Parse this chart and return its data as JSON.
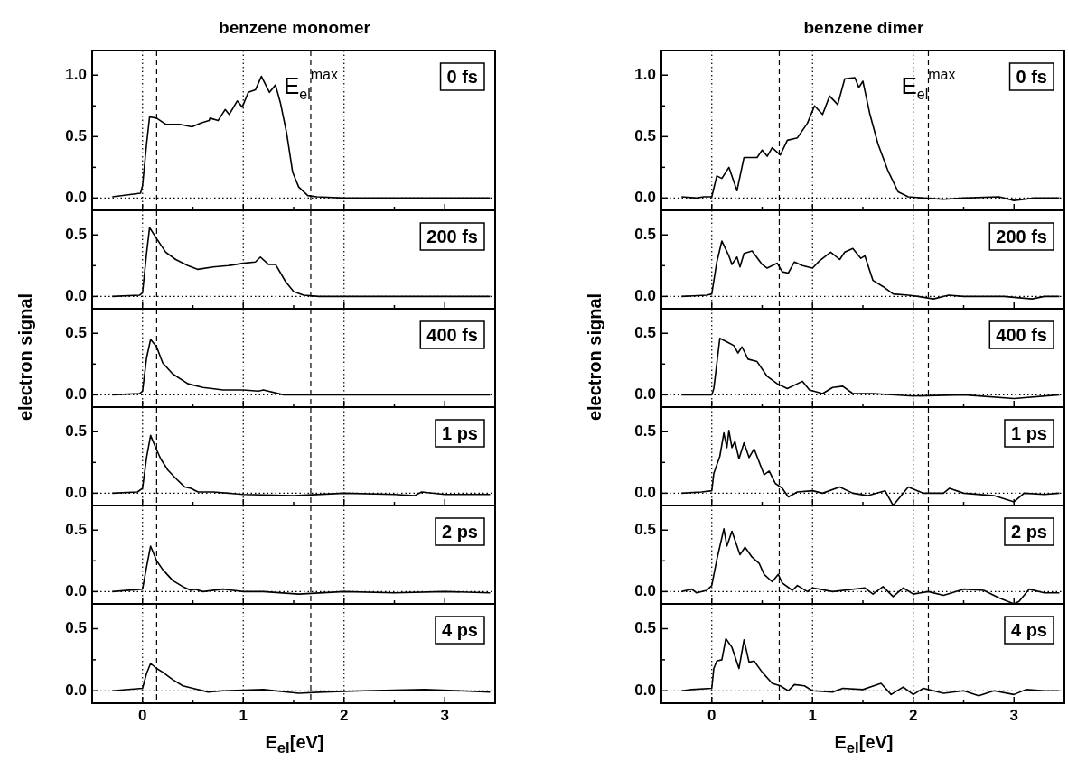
{
  "chart_data": [
    {
      "type": "line",
      "title": "benzene monomer",
      "color": "#000000",
      "tick_labels": "y",
      "x": [
        -0.3,
        -0.02,
        0.0,
        0.04,
        0.07,
        0.14,
        0.23,
        0.37,
        0.49,
        0.58,
        0.66,
        0.67,
        0.75,
        0.82,
        0.86,
        0.94,
        0.99,
        1.05,
        1.12,
        1.18,
        1.26,
        1.32,
        1.37,
        1.43,
        1.49,
        1.55,
        1.64,
        1.73,
        2.0,
        2.5,
        3.0,
        3.45
      ],
      "values": [
        0.01,
        0.04,
        0.1,
        0.44,
        0.66,
        0.65,
        0.6,
        0.6,
        0.58,
        0.61,
        0.63,
        0.65,
        0.63,
        0.72,
        0.68,
        0.79,
        0.74,
        0.86,
        0.88,
        0.99,
        0.86,
        0.92,
        0.77,
        0.53,
        0.21,
        0.09,
        0.02,
        0.01,
        0.0,
        0.0,
        0.0,
        0.0
      ],
      "xlim": [
        -0.5,
        3.5
      ],
      "xticks": [
        0,
        {
          "value": 0.5,
          "label": null
        },
        1,
        {
          "value": 1.5,
          "label": null
        },
        2,
        {
          "value": 2.5,
          "label": null
        },
        3
      ],
      "ylim": [
        -0.1,
        1.2
      ],
      "yticks": [
        {
          "value": 0,
          "label": "0.0"
        },
        {
          "value": 0.25,
          "label": null
        },
        {
          "value": 0.5,
          "label": "0.5"
        },
        {
          "value": 0.75,
          "label": null
        },
        {
          "value": 1,
          "label": "1.0"
        }
      ],
      "ref_lines": [
        {
          "axis": "x",
          "value": 0,
          "line_style": "dotted"
        },
        {
          "axis": "x",
          "value": 1,
          "line_style": "dotted"
        },
        {
          "axis": "x",
          "value": 2,
          "line_style": "dotted"
        },
        {
          "axis": "x",
          "value": 0.14,
          "line_style": "dashed"
        },
        {
          "axis": "x",
          "value": 1.67,
          "line_style": "dashed"
        },
        {
          "axis": "y",
          "value": 0,
          "line_style": "dotted"
        }
      ],
      "annotations": [
        "0 fs",
        {
          "text": "E$_{el}$$^{max}$",
          "x": 1.67,
          "y": 0.9
        }
      ]
    },
    {
      "type": "line",
      "color": "#000000",
      "tick_labels": "y",
      "x": [
        -0.3,
        -0.03,
        0.0,
        0.04,
        0.07,
        0.14,
        0.23,
        0.33,
        0.45,
        0.55,
        0.7,
        0.85,
        1.0,
        1.12,
        1.17,
        1.25,
        1.32,
        1.42,
        1.5,
        1.6,
        1.75,
        2.5,
        3.45
      ],
      "values": [
        0.0,
        0.01,
        0.03,
        0.35,
        0.56,
        0.47,
        0.36,
        0.3,
        0.25,
        0.22,
        0.24,
        0.25,
        0.27,
        0.28,
        0.32,
        0.26,
        0.26,
        0.12,
        0.04,
        0.01,
        0.0,
        0.0,
        0.0
      ],
      "xlim": [
        -0.5,
        3.5
      ],
      "xticks": [
        0,
        {
          "value": 0.5,
          "label": null
        },
        1,
        {
          "value": 1.5,
          "label": null
        },
        2,
        {
          "value": 2.5,
          "label": null
        },
        3
      ],
      "ylim": [
        -0.1,
        0.7
      ],
      "yticks": [
        {
          "value": 0,
          "label": "0.0"
        },
        {
          "value": 0.25,
          "label": null
        },
        {
          "value": 0.5,
          "label": "0.5"
        }
      ],
      "ref_lines": [
        {
          "axis": "x",
          "value": 0,
          "line_style": "dotted"
        },
        {
          "axis": "x",
          "value": 1,
          "line_style": "dotted"
        },
        {
          "axis": "x",
          "value": 2,
          "line_style": "dotted"
        },
        {
          "axis": "x",
          "value": 0.14,
          "line_style": "dashed"
        },
        {
          "axis": "x",
          "value": 1.67,
          "line_style": "dashed"
        },
        {
          "axis": "y",
          "value": 0,
          "line_style": "dotted"
        }
      ],
      "annotations": [
        "200 fs"
      ]
    },
    {
      "type": "line",
      "color": "#000000",
      "tick_labels": "y",
      "x": [
        -0.3,
        -0.03,
        0.0,
        0.04,
        0.08,
        0.14,
        0.2,
        0.3,
        0.45,
        0.6,
        0.8,
        1.0,
        1.15,
        1.2,
        1.4,
        1.6,
        2.0,
        3.45
      ],
      "ylabel": "electron signal",
      "values": [
        0.0,
        0.01,
        0.03,
        0.3,
        0.45,
        0.39,
        0.26,
        0.17,
        0.09,
        0.06,
        0.04,
        0.04,
        0.03,
        0.04,
        0.0,
        0.0,
        0.0,
        0.0
      ],
      "xlim": [
        -0.5,
        3.5
      ],
      "xticks": [
        0,
        {
          "value": 0.5,
          "label": null
        },
        1,
        {
          "value": 1.5,
          "label": null
        },
        2,
        {
          "value": 2.5,
          "label": null
        },
        3
      ],
      "ylim": [
        -0.1,
        0.7
      ],
      "yticks": [
        {
          "value": 0,
          "label": "0.0"
        },
        {
          "value": 0.25,
          "label": null
        },
        {
          "value": 0.5,
          "label": "0.5"
        }
      ],
      "ref_lines": [
        {
          "axis": "x",
          "value": 0,
          "line_style": "dotted"
        },
        {
          "axis": "x",
          "value": 1,
          "line_style": "dotted"
        },
        {
          "axis": "x",
          "value": 2,
          "line_style": "dotted"
        },
        {
          "axis": "x",
          "value": 0.14,
          "line_style": "dashed"
        },
        {
          "axis": "x",
          "value": 1.67,
          "line_style": "dashed"
        },
        {
          "axis": "y",
          "value": 0,
          "line_style": "dotted"
        }
      ],
      "annotations": [
        "400 fs"
      ]
    },
    {
      "type": "line",
      "color": "#000000",
      "tick_labels": "y",
      "x": [
        -0.3,
        -0.05,
        0.0,
        0.04,
        0.08,
        0.12,
        0.18,
        0.25,
        0.33,
        0.42,
        0.48,
        0.55,
        0.7,
        1.0,
        1.5,
        2.0,
        2.5,
        2.7,
        2.77,
        3.0,
        3.45
      ],
      "values": [
        0.0,
        0.01,
        0.04,
        0.29,
        0.47,
        0.39,
        0.28,
        0.19,
        0.12,
        0.05,
        0.04,
        0.01,
        0.01,
        -0.01,
        -0.02,
        0.0,
        -0.01,
        -0.02,
        0.01,
        -0.01,
        -0.01
      ],
      "xlim": [
        -0.5,
        3.5
      ],
      "xticks": [
        0,
        {
          "value": 0.5,
          "label": null
        },
        1,
        {
          "value": 1.5,
          "label": null
        },
        2,
        {
          "value": 2.5,
          "label": null
        },
        3
      ],
      "ylim": [
        -0.1,
        0.7
      ],
      "yticks": [
        {
          "value": 0,
          "label": "0.0"
        },
        {
          "value": 0.25,
          "label": null
        },
        {
          "value": 0.5,
          "label": "0.5"
        }
      ],
      "ref_lines": [
        {
          "axis": "x",
          "value": 0,
          "line_style": "dotted"
        },
        {
          "axis": "x",
          "value": 1,
          "line_style": "dotted"
        },
        {
          "axis": "x",
          "value": 2,
          "line_style": "dotted"
        },
        {
          "axis": "x",
          "value": 0.14,
          "line_style": "dashed"
        },
        {
          "axis": "x",
          "value": 1.67,
          "line_style": "dashed"
        },
        {
          "axis": "y",
          "value": 0,
          "line_style": "dotted"
        }
      ],
      "annotations": [
        "1 ps"
      ]
    },
    {
      "type": "line",
      "color": "#000000",
      "tick_labels": "y",
      "x": [
        -0.3,
        0.0,
        0.04,
        0.08,
        0.14,
        0.2,
        0.3,
        0.4,
        0.48,
        0.52,
        0.6,
        0.8,
        1.0,
        1.2,
        1.55,
        2.0,
        2.5,
        3.0,
        3.45
      ],
      "values": [
        0.0,
        0.02,
        0.2,
        0.37,
        0.25,
        0.18,
        0.09,
        0.04,
        0.01,
        0.02,
        0.0,
        0.02,
        0.0,
        0.0,
        -0.02,
        0.0,
        -0.01,
        0.0,
        -0.01
      ],
      "xlim": [
        -0.5,
        3.5
      ],
      "xticks": [
        0,
        {
          "value": 0.5,
          "label": null
        },
        1,
        {
          "value": 1.5,
          "label": null
        },
        2,
        {
          "value": 2.5,
          "label": null
        },
        3
      ],
      "ylim": [
        -0.1,
        0.7
      ],
      "yticks": [
        {
          "value": 0,
          "label": "0.0"
        },
        {
          "value": 0.25,
          "label": null
        },
        {
          "value": 0.5,
          "label": "0.5"
        }
      ],
      "ref_lines": [
        {
          "axis": "x",
          "value": 0,
          "line_style": "dotted"
        },
        {
          "axis": "x",
          "value": 1,
          "line_style": "dotted"
        },
        {
          "axis": "x",
          "value": 2,
          "line_style": "dotted"
        },
        {
          "axis": "x",
          "value": 0.14,
          "line_style": "dashed"
        },
        {
          "axis": "x",
          "value": 1.67,
          "line_style": "dashed"
        },
        {
          "axis": "y",
          "value": 0,
          "line_style": "dotted"
        }
      ],
      "annotations": [
        "2 ps"
      ]
    },
    {
      "type": "line",
      "color": "#000000",
      "xlabel": "E$_{el}$[eV]",
      "x": [
        -0.3,
        0.0,
        0.04,
        0.08,
        0.14,
        0.2,
        0.3,
        0.4,
        0.5,
        0.65,
        0.8,
        1.2,
        1.55,
        1.8,
        2.2,
        2.8,
        3.45
      ],
      "values": [
        0.0,
        0.02,
        0.14,
        0.22,
        0.18,
        0.15,
        0.09,
        0.04,
        0.02,
        -0.01,
        0.0,
        0.01,
        -0.02,
        -0.01,
        0.0,
        0.01,
        -0.01
      ],
      "xlim": [
        -0.5,
        3.5
      ],
      "xticks": [
        0,
        {
          "value": 0.5,
          "label": null
        },
        1,
        {
          "value": 1.5,
          "label": null
        },
        2,
        {
          "value": 2.5,
          "label": null
        },
        3
      ],
      "ylim": [
        -0.1,
        0.7
      ],
      "yticks": [
        {
          "value": 0,
          "label": "0.0"
        },
        {
          "value": 0.25,
          "label": null
        },
        {
          "value": 0.5,
          "label": "0.5"
        }
      ],
      "ref_lines": [
        {
          "axis": "x",
          "value": 0,
          "line_style": "dotted"
        },
        {
          "axis": "x",
          "value": 1,
          "line_style": "dotted"
        },
        {
          "axis": "x",
          "value": 2,
          "line_style": "dotted"
        },
        {
          "axis": "x",
          "value": 0.14,
          "line_style": "dashed"
        },
        {
          "axis": "x",
          "value": 1.67,
          "line_style": "dashed"
        },
        {
          "axis": "y",
          "value": 0,
          "line_style": "dotted"
        }
      ],
      "annotations": [
        "4 ps"
      ]
    },
    {
      "type": "line",
      "title": "benzene dimer",
      "color": "#000000",
      "tick_labels": "y",
      "x": [
        -0.3,
        -0.15,
        -0.08,
        0.0,
        0.05,
        0.1,
        0.17,
        0.25,
        0.32,
        0.45,
        0.5,
        0.55,
        0.6,
        0.68,
        0.75,
        0.85,
        0.95,
        1.02,
        1.1,
        1.17,
        1.25,
        1.32,
        1.42,
        1.46,
        1.5,
        1.57,
        1.65,
        1.75,
        1.85,
        1.95,
        2.1,
        2.3,
        2.5,
        2.85,
        3.0,
        3.2,
        3.45
      ],
      "values": [
        0.01,
        0.0,
        0.01,
        0.01,
        0.18,
        0.16,
        0.25,
        0.06,
        0.33,
        0.33,
        0.39,
        0.34,
        0.41,
        0.35,
        0.47,
        0.49,
        0.61,
        0.75,
        0.68,
        0.83,
        0.76,
        0.97,
        0.98,
        0.9,
        0.95,
        0.68,
        0.44,
        0.22,
        0.05,
        0.01,
        0.0,
        -0.01,
        0.0,
        0.01,
        -0.02,
        0.0,
        0.0
      ],
      "xlim": [
        -0.5,
        3.5
      ],
      "xticks": [
        0,
        {
          "value": 0.5,
          "label": null
        },
        1,
        {
          "value": 1.5,
          "label": null
        },
        2,
        {
          "value": 2.5,
          "label": null
        },
        3
      ],
      "ylim": [
        -0.1,
        1.2
      ],
      "yticks": [
        {
          "value": 0,
          "label": "0.0"
        },
        {
          "value": 0.25,
          "label": null
        },
        {
          "value": 0.5,
          "label": "0.5"
        },
        {
          "value": 0.75,
          "label": null
        },
        {
          "value": 1,
          "label": "1.0"
        }
      ],
      "ref_lines": [
        {
          "axis": "x",
          "value": 0,
          "line_style": "dotted"
        },
        {
          "axis": "x",
          "value": 1,
          "line_style": "dotted"
        },
        {
          "axis": "x",
          "value": 2,
          "line_style": "dotted"
        },
        {
          "axis": "x",
          "value": 0.67,
          "line_style": "dashed"
        },
        {
          "axis": "x",
          "value": 2.15,
          "line_style": "dashed"
        },
        {
          "axis": "y",
          "value": 0,
          "line_style": "dotted"
        }
      ],
      "annotations": [
        "0 fs",
        {
          "text": "E$_{el}$$^{max}$",
          "x": 2.15,
          "y": 0.9
        }
      ]
    },
    {
      "type": "line",
      "color": "#000000",
      "tick_labels": "y",
      "x": [
        -0.3,
        -0.05,
        0.0,
        0.05,
        0.1,
        0.17,
        0.2,
        0.25,
        0.28,
        0.32,
        0.4,
        0.5,
        0.55,
        0.65,
        0.7,
        0.76,
        0.82,
        0.9,
        1.0,
        1.07,
        1.18,
        1.27,
        1.32,
        1.4,
        1.48,
        1.52,
        1.6,
        1.7,
        1.8,
        1.95,
        2.05,
        2.2,
        2.35,
        2.5,
        2.9,
        3.18,
        3.3,
        3.45
      ],
      "values": [
        0.0,
        0.01,
        0.02,
        0.28,
        0.45,
        0.33,
        0.26,
        0.32,
        0.24,
        0.35,
        0.37,
        0.26,
        0.23,
        0.27,
        0.2,
        0.19,
        0.28,
        0.25,
        0.23,
        0.29,
        0.36,
        0.3,
        0.36,
        0.39,
        0.31,
        0.33,
        0.13,
        0.08,
        0.02,
        0.01,
        0.0,
        -0.02,
        0.01,
        0.0,
        0.0,
        -0.02,
        0.0,
        0.0
      ],
      "xlim": [
        -0.5,
        3.5
      ],
      "xticks": [
        0,
        {
          "value": 0.5,
          "label": null
        },
        1,
        {
          "value": 1.5,
          "label": null
        },
        2,
        {
          "value": 2.5,
          "label": null
        },
        3
      ],
      "ylim": [
        -0.1,
        0.7
      ],
      "yticks": [
        {
          "value": 0,
          "label": "0.0"
        },
        {
          "value": 0.25,
          "label": null
        },
        {
          "value": 0.5,
          "label": "0.5"
        }
      ],
      "ref_lines": [
        {
          "axis": "x",
          "value": 0,
          "line_style": "dotted"
        },
        {
          "axis": "x",
          "value": 1,
          "line_style": "dotted"
        },
        {
          "axis": "x",
          "value": 2,
          "line_style": "dotted"
        },
        {
          "axis": "x",
          "value": 0.67,
          "line_style": "dashed"
        },
        {
          "axis": "x",
          "value": 2.15,
          "line_style": "dashed"
        },
        {
          "axis": "y",
          "value": 0,
          "line_style": "dotted"
        }
      ],
      "annotations": [
        "200 fs"
      ]
    },
    {
      "type": "line",
      "color": "#000000",
      "tick_labels": "y",
      "x": [
        -0.3,
        0.0,
        0.02,
        0.08,
        0.15,
        0.22,
        0.26,
        0.3,
        0.36,
        0.45,
        0.55,
        0.65,
        0.75,
        0.9,
        0.97,
        1.1,
        1.2,
        1.3,
        1.4,
        1.6,
        2.0,
        2.5,
        3.0,
        3.45
      ],
      "ylabel": "electron signal",
      "values": [
        0.0,
        0.0,
        0.05,
        0.46,
        0.43,
        0.4,
        0.34,
        0.39,
        0.29,
        0.27,
        0.15,
        0.09,
        0.05,
        0.11,
        0.04,
        0.01,
        0.06,
        0.07,
        0.01,
        0.01,
        -0.01,
        0.0,
        -0.03,
        0.0
      ],
      "xlim": [
        -0.5,
        3.5
      ],
      "xticks": [
        0,
        {
          "value": 0.5,
          "label": null
        },
        1,
        {
          "value": 1.5,
          "label": null
        },
        2,
        {
          "value": 2.5,
          "label": null
        },
        3
      ],
      "ylim": [
        -0.1,
        0.7
      ],
      "yticks": [
        {
          "value": 0,
          "label": "0.0"
        },
        {
          "value": 0.25,
          "label": null
        },
        {
          "value": 0.5,
          "label": "0.5"
        }
      ],
      "ref_lines": [
        {
          "axis": "x",
          "value": 0,
          "line_style": "dotted"
        },
        {
          "axis": "x",
          "value": 1,
          "line_style": "dotted"
        },
        {
          "axis": "x",
          "value": 2,
          "line_style": "dotted"
        },
        {
          "axis": "x",
          "value": 0.67,
          "line_style": "dashed"
        },
        {
          "axis": "x",
          "value": 2.15,
          "line_style": "dashed"
        },
        {
          "axis": "y",
          "value": 0,
          "line_style": "dotted"
        }
      ],
      "annotations": [
        "400 fs"
      ]
    },
    {
      "type": "line",
      "color": "#000000",
      "tick_labels": "y",
      "x": [
        -0.3,
        -0.1,
        0.0,
        0.02,
        0.08,
        0.12,
        0.15,
        0.17,
        0.2,
        0.23,
        0.27,
        0.32,
        0.37,
        0.42,
        0.52,
        0.57,
        0.63,
        0.7,
        0.76,
        0.85,
        1.0,
        1.1,
        1.27,
        1.4,
        1.55,
        1.72,
        1.8,
        1.95,
        2.1,
        2.3,
        2.36,
        2.5,
        2.8,
        3.0,
        3.1,
        3.3,
        3.45
      ],
      "values": [
        0.0,
        0.01,
        0.02,
        0.16,
        0.3,
        0.49,
        0.37,
        0.51,
        0.37,
        0.42,
        0.28,
        0.41,
        0.29,
        0.36,
        0.15,
        0.18,
        0.08,
        0.04,
        -0.03,
        0.01,
        0.02,
        0.0,
        0.05,
        0.0,
        -0.02,
        0.02,
        -0.1,
        0.05,
        0.0,
        0.0,
        0.04,
        0.0,
        -0.02,
        -0.07,
        0.0,
        -0.01,
        0.0
      ],
      "xlim": [
        -0.5,
        3.5
      ],
      "xticks": [
        0,
        {
          "value": 0.5,
          "label": null
        },
        1,
        {
          "value": 1.5,
          "label": null
        },
        2,
        {
          "value": 2.5,
          "label": null
        },
        3
      ],
      "ylim": [
        -0.1,
        0.7
      ],
      "yticks": [
        {
          "value": 0,
          "label": "0.0"
        },
        {
          "value": 0.25,
          "label": null
        },
        {
          "value": 0.5,
          "label": "0.5"
        }
      ],
      "ref_lines": [
        {
          "axis": "x",
          "value": 0,
          "line_style": "dotted"
        },
        {
          "axis": "x",
          "value": 1,
          "line_style": "dotted"
        },
        {
          "axis": "x",
          "value": 2,
          "line_style": "dotted"
        },
        {
          "axis": "x",
          "value": 0.67,
          "line_style": "dashed"
        },
        {
          "axis": "x",
          "value": 2.15,
          "line_style": "dashed"
        },
        {
          "axis": "y",
          "value": 0,
          "line_style": "dotted"
        }
      ],
      "annotations": [
        "1 ps"
      ]
    },
    {
      "type": "line",
      "color": "#000000",
      "tick_labels": "y",
      "x": [
        -0.3,
        -0.2,
        -0.15,
        -0.05,
        0.0,
        0.05,
        0.12,
        0.15,
        0.2,
        0.28,
        0.33,
        0.4,
        0.47,
        0.52,
        0.6,
        0.66,
        0.7,
        0.8,
        0.85,
        0.95,
        1.0,
        1.2,
        1.52,
        1.6,
        1.7,
        1.8,
        1.9,
        2.0,
        2.15,
        2.3,
        2.5,
        2.7,
        2.85,
        3.0,
        3.05,
        3.15,
        3.3,
        3.45
      ],
      "values": [
        0.0,
        0.02,
        -0.01,
        0.01,
        0.05,
        0.26,
        0.51,
        0.37,
        0.49,
        0.3,
        0.36,
        0.28,
        0.23,
        0.14,
        0.08,
        0.14,
        0.07,
        0.01,
        0.05,
        0.0,
        0.03,
        0.0,
        0.03,
        -0.02,
        0.04,
        -0.04,
        0.03,
        -0.02,
        0.0,
        -0.03,
        0.02,
        0.01,
        -0.05,
        -0.1,
        -0.08,
        0.02,
        -0.01,
        -0.01
      ],
      "xlim": [
        -0.5,
        3.5
      ],
      "xticks": [
        0,
        {
          "value": 0.5,
          "label": null
        },
        1,
        {
          "value": 1.5,
          "label": null
        },
        2,
        {
          "value": 2.5,
          "label": null
        },
        3
      ],
      "ylim": [
        -0.1,
        0.7
      ],
      "yticks": [
        {
          "value": 0,
          "label": "0.0"
        },
        {
          "value": 0.25,
          "label": null
        },
        {
          "value": 0.5,
          "label": "0.5"
        }
      ],
      "ref_lines": [
        {
          "axis": "x",
          "value": 0,
          "line_style": "dotted"
        },
        {
          "axis": "x",
          "value": 1,
          "line_style": "dotted"
        },
        {
          "axis": "x",
          "value": 2,
          "line_style": "dotted"
        },
        {
          "axis": "x",
          "value": 0.67,
          "line_style": "dashed"
        },
        {
          "axis": "x",
          "value": 2.15,
          "line_style": "dashed"
        },
        {
          "axis": "y",
          "value": 0,
          "line_style": "dotted"
        }
      ],
      "annotations": [
        "2 ps"
      ]
    },
    {
      "type": "line",
      "color": "#000000",
      "xlabel": "E$_{el}$[eV]",
      "x": [
        -0.3,
        -0.2,
        0.0,
        0.02,
        0.05,
        0.1,
        0.14,
        0.2,
        0.27,
        0.32,
        0.37,
        0.42,
        0.5,
        0.6,
        0.68,
        0.76,
        0.82,
        0.92,
        1.0,
        1.2,
        1.3,
        1.5,
        1.68,
        1.78,
        1.9,
        2.0,
        2.1,
        2.3,
        2.5,
        2.65,
        2.8,
        3.0,
        3.12,
        3.3,
        3.45
      ],
      "values": [
        0.0,
        0.01,
        0.02,
        0.18,
        0.24,
        0.25,
        0.42,
        0.35,
        0.18,
        0.41,
        0.23,
        0.24,
        0.15,
        0.06,
        0.04,
        0.0,
        0.05,
        0.04,
        0.0,
        -0.01,
        0.02,
        0.01,
        0.06,
        -0.03,
        0.03,
        -0.03,
        0.02,
        -0.02,
        0.0,
        -0.04,
        0.0,
        -0.03,
        0.01,
        0.0,
        0.0
      ],
      "xlim": [
        -0.5,
        3.5
      ],
      "xticks": [
        0,
        {
          "value": 0.5,
          "label": null
        },
        1,
        {
          "value": 1.5,
          "label": null
        },
        2,
        {
          "value": 2.5,
          "label": null
        },
        3
      ],
      "ylim": [
        -0.1,
        0.7
      ],
      "yticks": [
        {
          "value": 0,
          "label": "0.0"
        },
        {
          "value": 0.25,
          "label": null
        },
        {
          "value": 0.5,
          "label": "0.5"
        }
      ],
      "ref_lines": [
        {
          "axis": "x",
          "value": 0,
          "line_style": "dotted"
        },
        {
          "axis": "x",
          "value": 1,
          "line_style": "dotted"
        },
        {
          "axis": "x",
          "value": 2,
          "line_style": "dotted"
        },
        {
          "axis": "x",
          "value": 0.67,
          "line_style": "dashed"
        },
        {
          "axis": "x",
          "value": 2.15,
          "line_style": "dashed"
        },
        {
          "axis": "y",
          "value": 0,
          "line_style": "dotted"
        }
      ],
      "annotations": [
        "4 ps"
      ]
    }
  ]
}
